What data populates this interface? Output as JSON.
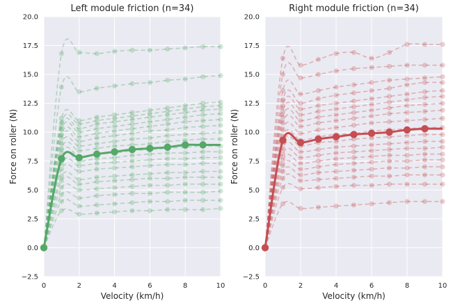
{
  "chart_data": [
    {
      "type": "line",
      "title": "Left module friction (n=34)",
      "xlabel": "Velocity (km/h)",
      "ylabel": "Force on roller (N)",
      "xlim": [
        0,
        10
      ],
      "ylim": [
        -2.5,
        20.0
      ],
      "x_ticks": [
        "0",
        "2",
        "4",
        "6",
        "8",
        "10"
      ],
      "y_ticks": [
        "−2.5",
        "0.0",
        "2.5",
        "5.0",
        "7.5",
        "10.0",
        "12.5",
        "15.0",
        "17.5",
        "20.0"
      ],
      "grid": true,
      "background": "#EAEAF2",
      "color": "#55A868",
      "x": [
        0,
        1,
        2,
        3,
        4,
        5,
        6,
        7,
        8,
        9,
        10
      ],
      "series": [
        {
          "values": [
            0,
            16.8,
            16.9,
            16.8,
            17.0,
            17.1,
            17.1,
            17.2,
            17.3,
            17.4,
            17.4
          ]
        },
        {
          "values": [
            0,
            13.9,
            13.5,
            13.8,
            14.0,
            14.2,
            14.3,
            14.5,
            14.6,
            14.8,
            14.9
          ]
        },
        {
          "values": [
            0,
            11.2,
            11.0,
            11.3,
            11.5,
            11.7,
            11.9,
            12.1,
            12.3,
            12.5,
            12.6
          ]
        },
        {
          "values": [
            0,
            10.8,
            10.7,
            11.0,
            11.2,
            11.4,
            11.6,
            11.8,
            12.0,
            12.2,
            12.3
          ]
        },
        {
          "values": [
            0,
            10.5,
            10.3,
            10.7,
            10.9,
            11.1,
            11.3,
            11.5,
            11.7,
            11.9,
            12.0
          ]
        },
        {
          "values": [
            0,
            10.2,
            10.0,
            10.3,
            10.5,
            10.7,
            10.9,
            11.1,
            11.3,
            11.5,
            11.6
          ]
        },
        {
          "values": [
            0,
            9.8,
            9.6,
            9.9,
            10.1,
            10.3,
            10.5,
            10.7,
            10.9,
            11.0,
            11.1
          ]
        },
        {
          "values": [
            0,
            9.5,
            9.2,
            9.5,
            9.7,
            9.9,
            10.1,
            10.2,
            10.4,
            10.5,
            10.6
          ]
        },
        {
          "values": [
            0,
            9.0,
            8.8,
            9.0,
            9.2,
            9.4,
            9.5,
            9.7,
            9.8,
            9.9,
            10.0
          ]
        },
        {
          "values": [
            0,
            8.6,
            8.4,
            8.6,
            8.8,
            8.9,
            9.0,
            9.2,
            9.3,
            9.4,
            9.4
          ]
        },
        {
          "values": [
            0,
            8.2,
            7.9,
            8.1,
            8.2,
            8.4,
            8.5,
            8.6,
            8.7,
            8.8,
            8.8
          ]
        },
        {
          "values": [
            0,
            7.8,
            7.5,
            7.7,
            7.8,
            8.0,
            8.1,
            8.2,
            8.2,
            8.3,
            8.3
          ]
        },
        {
          "values": [
            0,
            7.3,
            7.1,
            7.3,
            7.4,
            7.5,
            7.6,
            7.7,
            7.7,
            7.8,
            7.8
          ]
        },
        {
          "values": [
            0,
            6.8,
            6.6,
            6.8,
            6.9,
            7.0,
            7.1,
            7.2,
            7.2,
            7.3,
            7.3
          ]
        },
        {
          "values": [
            0,
            6.2,
            5.9,
            6.1,
            6.2,
            6.3,
            6.4,
            6.5,
            6.5,
            6.6,
            6.6
          ]
        },
        {
          "values": [
            0,
            5.8,
            5.5,
            5.7,
            5.8,
            5.9,
            6.0,
            6.0,
            6.1,
            6.1,
            6.1
          ]
        },
        {
          "values": [
            0,
            5.2,
            5.0,
            5.1,
            5.2,
            5.3,
            5.4,
            5.4,
            5.5,
            5.5,
            5.5
          ]
        },
        {
          "values": [
            0,
            4.6,
            4.3,
            4.5,
            4.6,
            4.7,
            4.7,
            4.8,
            4.8,
            4.8,
            4.9
          ]
        },
        {
          "values": [
            0,
            4.0,
            3.6,
            3.7,
            3.8,
            3.9,
            4.0,
            4.0,
            4.1,
            4.1,
            4.1
          ]
        },
        {
          "values": [
            0,
            3.2,
            2.9,
            3.0,
            3.1,
            3.2,
            3.2,
            3.3,
            3.3,
            3.3,
            3.4
          ]
        }
      ],
      "mean": {
        "values": [
          0,
          7.7,
          7.8,
          8.1,
          8.3,
          8.5,
          8.6,
          8.7,
          8.9,
          8.9,
          8.9
        ]
      }
    },
    {
      "type": "line",
      "title": "Right module friction (n=34)",
      "xlabel": "Velocity (km/h)",
      "ylabel": "Force on roller (N)",
      "xlim": [
        0,
        10
      ],
      "ylim": [
        -2.5,
        20.0
      ],
      "x_ticks": [
        "0",
        "2",
        "4",
        "6",
        "8",
        "10"
      ],
      "y_ticks": [
        "−2.5",
        "0.0",
        "2.5",
        "5.0",
        "7.5",
        "10.0",
        "12.5",
        "15.0",
        "17.5",
        "20.0"
      ],
      "grid": true,
      "background": "#EAEAF2",
      "color": "#C44E52",
      "x": [
        0,
        1,
        2,
        3,
        4,
        5,
        6,
        7,
        8,
        9,
        10
      ],
      "series": [
        {
          "values": [
            0,
            16.4,
            15.8,
            16.3,
            16.8,
            16.9,
            16.4,
            16.9,
            17.6,
            17.6,
            17.6
          ]
        },
        {
          "values": [
            0,
            15.0,
            14.7,
            15.0,
            15.3,
            15.5,
            15.6,
            15.7,
            15.8,
            15.8,
            15.8
          ]
        },
        {
          "values": [
            0,
            13.6,
            13.3,
            13.6,
            13.9,
            14.1,
            14.3,
            14.5,
            14.6,
            14.7,
            14.8
          ]
        },
        {
          "values": [
            0,
            12.8,
            12.5,
            12.9,
            13.2,
            13.4,
            13.6,
            13.8,
            14.1,
            14.3,
            14.3
          ]
        },
        {
          "values": [
            0,
            12.3,
            12.0,
            12.3,
            12.5,
            12.7,
            12.9,
            13.1,
            13.3,
            13.5,
            13.6
          ]
        },
        {
          "values": [
            0,
            11.8,
            11.5,
            11.8,
            12.0,
            12.2,
            12.4,
            12.6,
            12.8,
            13.0,
            13.1
          ]
        },
        {
          "values": [
            0,
            11.3,
            11.0,
            11.3,
            11.5,
            11.7,
            11.9,
            12.1,
            12.3,
            12.4,
            12.5
          ]
        },
        {
          "values": [
            0,
            10.8,
            10.5,
            10.8,
            11.0,
            11.2,
            11.4,
            11.6,
            11.7,
            11.8,
            11.9
          ]
        },
        {
          "values": [
            0,
            10.2,
            9.9,
            10.2,
            10.4,
            10.6,
            10.8,
            10.9,
            11.0,
            11.1,
            11.2
          ]
        },
        {
          "values": [
            0,
            9.6,
            9.3,
            9.6,
            9.8,
            9.9,
            10.1,
            10.2,
            10.3,
            10.4,
            10.4
          ]
        },
        {
          "values": [
            0,
            9.1,
            8.8,
            9.1,
            9.2,
            9.4,
            9.5,
            9.6,
            9.7,
            9.8,
            9.8
          ]
        },
        {
          "values": [
            0,
            8.6,
            8.3,
            8.5,
            8.7,
            8.8,
            8.9,
            9.0,
            9.1,
            9.2,
            9.2
          ]
        },
        {
          "values": [
            0,
            8.1,
            7.8,
            8.0,
            8.2,
            8.3,
            8.4,
            8.5,
            8.6,
            8.6,
            8.7
          ]
        },
        {
          "values": [
            0,
            7.6,
            7.3,
            7.5,
            7.7,
            7.8,
            7.9,
            8.0,
            8.0,
            8.1,
            8.1
          ]
        },
        {
          "values": [
            0,
            7.1,
            6.8,
            7.0,
            7.2,
            7.3,
            7.4,
            7.5,
            7.5,
            7.6,
            7.6
          ]
        },
        {
          "values": [
            0,
            6.6,
            6.3,
            6.5,
            6.6,
            6.7,
            6.8,
            6.9,
            6.9,
            7.0,
            7.0
          ]
        },
        {
          "values": [
            0,
            6.0,
            5.8,
            5.9,
            6.0,
            6.1,
            6.2,
            6.2,
            6.3,
            6.3,
            6.3
          ]
        },
        {
          "values": [
            0,
            5.2,
            5.1,
            5.2,
            5.3,
            5.4,
            5.4,
            5.5,
            5.5,
            5.5,
            5.5
          ]
        },
        {
          "values": [
            0,
            3.8,
            3.4,
            3.5,
            3.6,
            3.7,
            3.8,
            3.9,
            4.0,
            4.0,
            4.0
          ]
        }
      ],
      "mean": {
        "values": [
          0,
          9.3,
          9.1,
          9.4,
          9.6,
          9.8,
          9.9,
          10.0,
          10.2,
          10.3,
          10.3
        ]
      }
    }
  ]
}
